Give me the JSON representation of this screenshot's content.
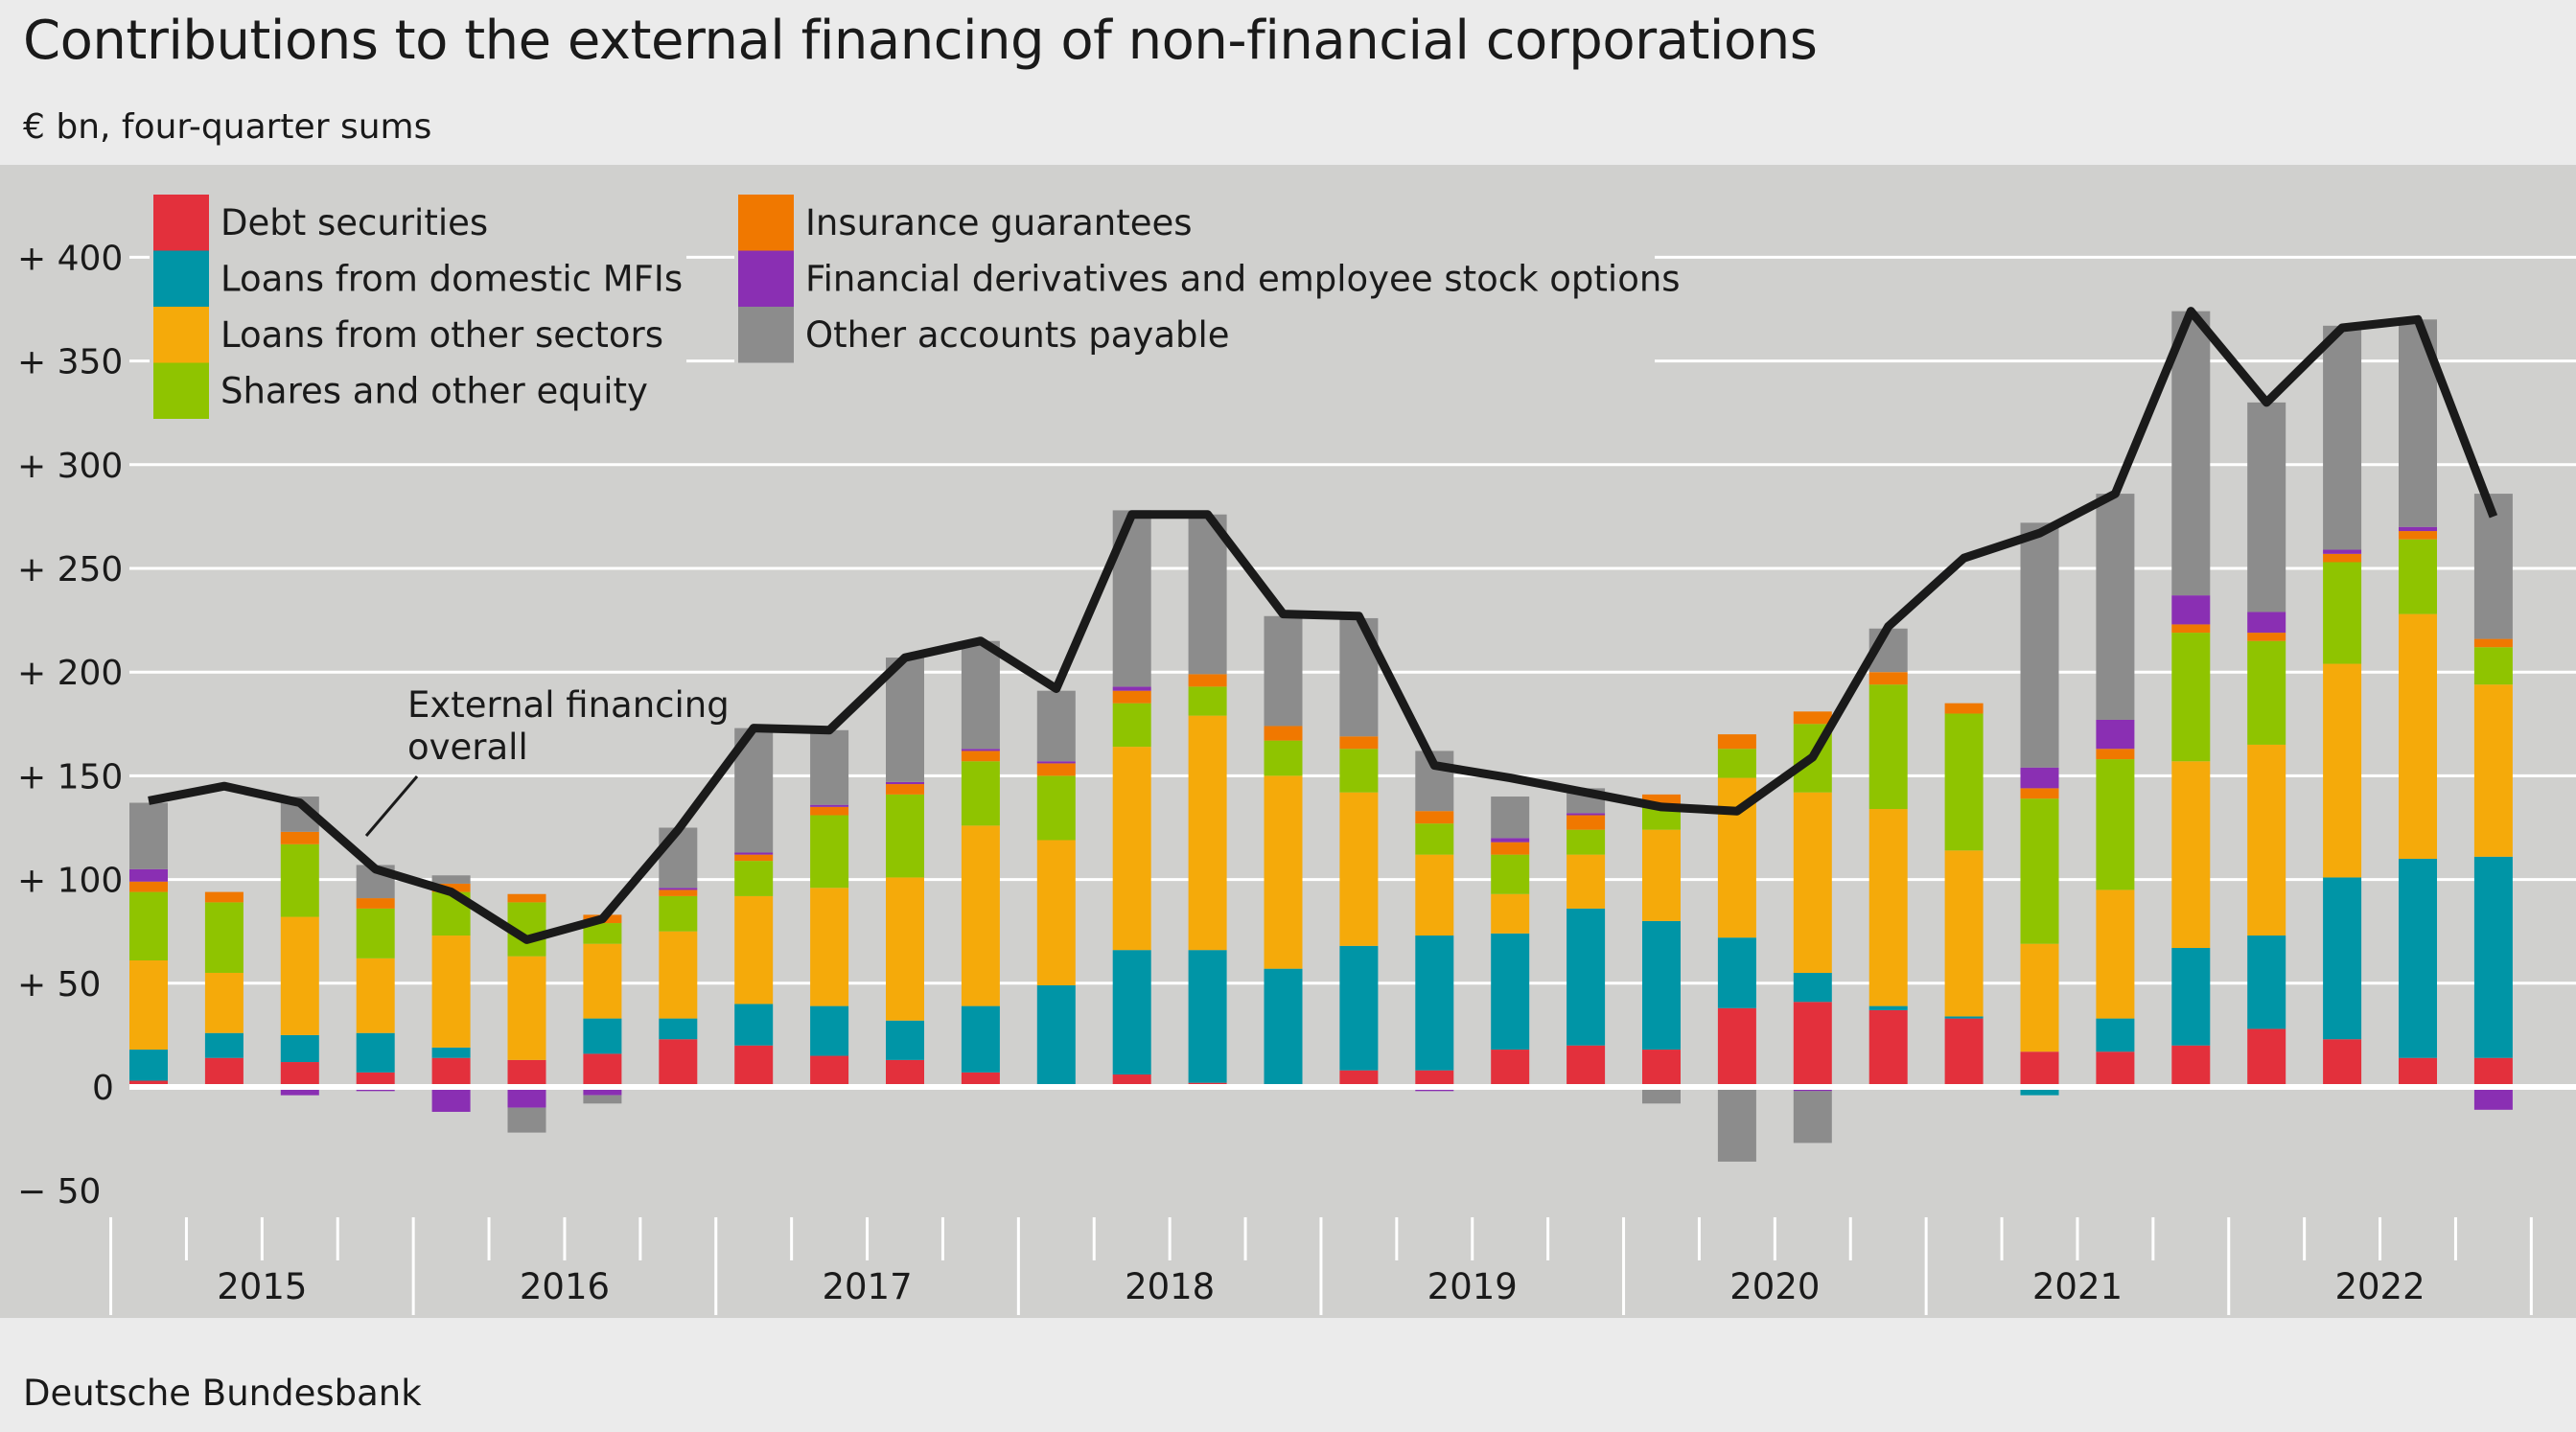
{
  "title": "Contributions to the external financing of non-financial corporations",
  "subtitle": "€ bn, four-quarter sums",
  "footer": "Deutsche Bundesbank",
  "chart_data": {
    "type": "bar",
    "stacked": true,
    "ylim": [
      -50,
      430
    ],
    "yticks": [
      {
        "value": 400,
        "label": "+ 400"
      },
      {
        "value": 350,
        "label": "+ 350"
      },
      {
        "value": 300,
        "label": "+ 300"
      },
      {
        "value": 250,
        "label": "+ 250"
      },
      {
        "value": 200,
        "label": "+ 200"
      },
      {
        "value": 150,
        "label": "+ 150"
      },
      {
        "value": 100,
        "label": "+ 100"
      },
      {
        "value": 50,
        "label": "+  50"
      },
      {
        "value": 0,
        "label": "0"
      },
      {
        "value": -50,
        "label": "−  50"
      }
    ],
    "years": [
      "2015",
      "2016",
      "2017",
      "2018",
      "2019",
      "2020",
      "2021",
      "2022"
    ],
    "quarters_per_year": 4,
    "grid": true,
    "legend_position": "top-left",
    "series": [
      {
        "name": "Debt securities",
        "color": "#e3303c",
        "values": [
          3,
          14,
          12,
          7,
          14,
          13,
          16,
          23,
          20,
          15,
          13,
          7,
          1,
          6,
          2,
          1,
          8,
          8,
          18,
          20,
          18,
          38,
          41,
          37,
          33,
          17,
          17,
          20,
          28,
          23,
          14,
          14
        ]
      },
      {
        "name": "Loans from domestic MFIs",
        "color": "#0095a6",
        "values": [
          15,
          12,
          13,
          19,
          5,
          0,
          17,
          10,
          20,
          24,
          19,
          32,
          48,
          60,
          64,
          56,
          60,
          65,
          56,
          66,
          62,
          34,
          14,
          2,
          1,
          -4,
          16,
          47,
          45,
          78,
          96,
          97
        ]
      },
      {
        "name": "Loans from other sectors",
        "color": "#f5aa0a",
        "values": [
          43,
          29,
          57,
          36,
          54,
          50,
          36,
          42,
          52,
          57,
          69,
          87,
          70,
          98,
          113,
          93,
          74,
          39,
          19,
          26,
          44,
          77,
          87,
          95,
          80,
          52,
          62,
          90,
          92,
          103,
          118,
          83
        ]
      },
      {
        "name": "Shares and other equity",
        "color": "#8fc400",
        "values": [
          33,
          34,
          35,
          24,
          21,
          26,
          10,
          17,
          17,
          35,
          40,
          31,
          31,
          21,
          14,
          17,
          21,
          15,
          19,
          12,
          12,
          14,
          33,
          60,
          66,
          70,
          63,
          62,
          50,
          49,
          36,
          18
        ]
      },
      {
        "name": "Insurance guarantees",
        "color": "#f07800",
        "values": [
          5,
          5,
          6,
          5,
          4,
          4,
          4,
          3,
          3,
          4,
          5,
          5,
          6,
          6,
          6,
          7,
          6,
          6,
          6,
          7,
          5,
          7,
          6,
          6,
          5,
          5,
          5,
          4,
          4,
          4,
          4,
          4
        ]
      },
      {
        "name": "Financial derivatives and employee stock options",
        "color": "#8a2fb3",
        "values": [
          6,
          0,
          -4,
          -2,
          -12,
          -10,
          -4,
          1,
          1,
          1,
          1,
          1,
          1,
          2,
          0,
          0,
          0,
          -2,
          2,
          1,
          0,
          0,
          -2,
          0,
          0,
          10,
          14,
          14,
          10,
          2,
          2,
          -11
        ]
      },
      {
        "name": "Other accounts payable",
        "color": "#8c8c8c",
        "values": [
          32,
          0,
          17,
          16,
          4,
          -12,
          -4,
          29,
          60,
          36,
          60,
          52,
          34,
          85,
          77,
          53,
          57,
          29,
          20,
          12,
          -8,
          -36,
          -25,
          21,
          0,
          118,
          109,
          137,
          101,
          108,
          100,
          70
        ]
      }
    ],
    "line": {
      "name": "External financing overall",
      "annotation": [
        "External financing",
        "overall"
      ],
      "color": "#1a1a1a",
      "values": [
        138,
        145,
        137,
        105,
        94,
        71,
        81,
        124,
        173,
        172,
        207,
        215,
        192,
        276,
        276,
        228,
        227,
        155,
        149,
        142,
        135,
        133,
        159,
        222,
        255,
        267,
        286,
        374,
        330,
        366,
        370,
        275
      ]
    }
  }
}
